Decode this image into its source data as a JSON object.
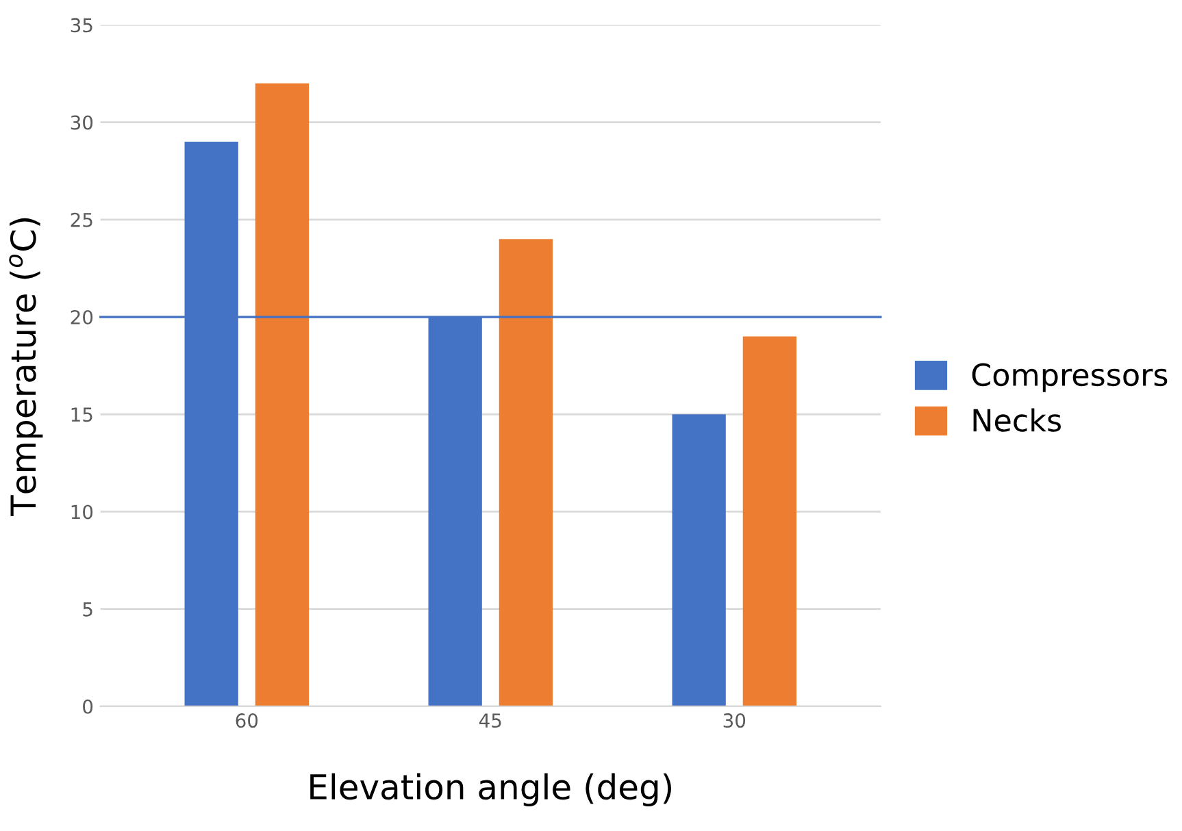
{
  "chart_data": {
    "type": "bar",
    "xlabel": "Elevation angle (deg)",
    "ylabel": "Temperature ($^{o}$C)",
    "categories": [
      "60",
      "45",
      "30"
    ],
    "series": [
      {
        "name": "Compressors",
        "color": "#4472c4",
        "values": [
          29,
          20,
          15
        ]
      },
      {
        "name": "Necks",
        "color": "#ed7d31",
        "values": [
          32,
          24,
          19
        ]
      }
    ],
    "ylim": [
      0,
      35
    ],
    "yticks": [
      0,
      5,
      10,
      15,
      20,
      25,
      30,
      35
    ],
    "grid": "y",
    "legend": "right",
    "ref_lines": [
      {
        "axis": "y",
        "value": 20,
        "color": "#4472c4",
        "line_style": "solid"
      }
    ]
  }
}
